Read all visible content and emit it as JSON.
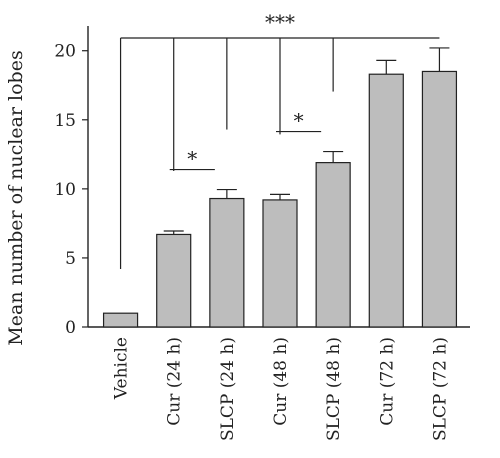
{
  "chart_data": {
    "type": "bar",
    "title": "",
    "xlabel": "",
    "ylabel": "Mean number of nuclear lobes",
    "ylim": [
      0,
      21.5
    ],
    "yticks": [
      0,
      5,
      10,
      15,
      20
    ],
    "categories": [
      "Vehicle",
      "Cur (24 h)",
      "SLCP (24 h)",
      "Cur (48 h)",
      "SLCP (48 h)",
      "Cur (72 h)",
      "SLCP (72 h)"
    ],
    "values": [
      1.0,
      6.7,
      9.3,
      9.2,
      11.9,
      18.3,
      18.5
    ],
    "error_bars": [
      0.0,
      0.25,
      0.65,
      0.4,
      0.8,
      1.0,
      1.7
    ],
    "bar_color": "#bdbdbd",
    "significance": [
      {
        "label": "***",
        "type": "comparison_to_vehicle",
        "from": 0,
        "to": [
          1,
          2,
          3,
          4,
          5,
          6
        ]
      },
      {
        "label": "*",
        "type": "pair",
        "from": 1,
        "to": 2
      },
      {
        "label": "*",
        "type": "pair",
        "from": 3,
        "to": 4
      }
    ],
    "grid": false
  }
}
